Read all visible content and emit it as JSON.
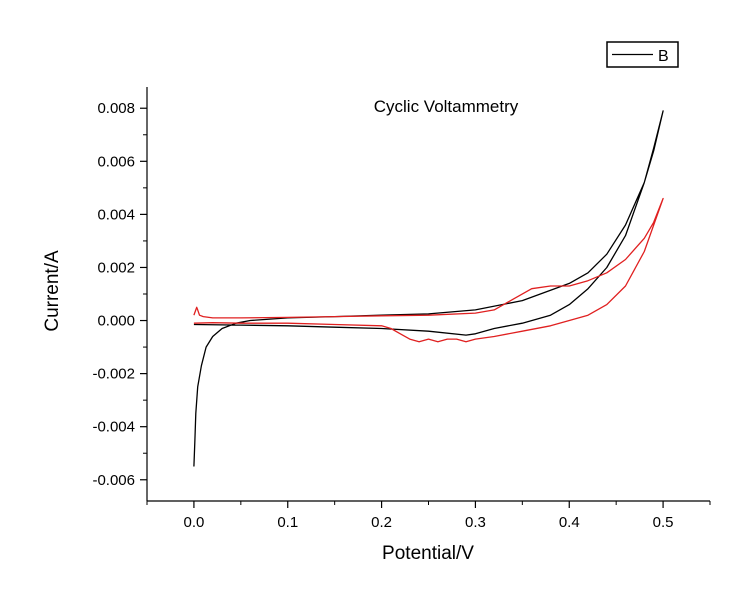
{
  "chart_data": {
    "type": "line",
    "title": "Cyclic Voltammetry",
    "xlabel": "Potential/V",
    "ylabel": "Current/A",
    "xlim": [
      -0.05,
      0.55
    ],
    "ylim": [
      -0.0068,
      0.0088
    ],
    "x_ticks": [
      0.0,
      0.1,
      0.2,
      0.3,
      0.4,
      0.5
    ],
    "x_tick_labels": [
      "0.0",
      "0.1",
      "0.2",
      "0.3",
      "0.4",
      "0.5"
    ],
    "y_ticks": [
      -0.006,
      -0.004,
      -0.002,
      0.0,
      0.002,
      0.004,
      0.006,
      0.008
    ],
    "y_tick_labels": [
      "-0.006",
      "-0.004",
      "-0.002",
      "0.000",
      "0.002",
      "0.004",
      "0.006",
      "0.008"
    ],
    "grid": false,
    "legend": {
      "position": "top-right",
      "entries": [
        {
          "label": "B",
          "color": "#000000"
        }
      ]
    },
    "series": [
      {
        "name": "B",
        "color": "#000000",
        "x": [
          0.0,
          0.001,
          0.002,
          0.004,
          0.008,
          0.013,
          0.02,
          0.03,
          0.045,
          0.06,
          0.1,
          0.15,
          0.2,
          0.25,
          0.3,
          0.35,
          0.4,
          0.42,
          0.44,
          0.46,
          0.48,
          0.49,
          0.5,
          0.49,
          0.48,
          0.46,
          0.44,
          0.42,
          0.4,
          0.38,
          0.35,
          0.32,
          0.3,
          0.29,
          0.25,
          0.2,
          0.15,
          0.1,
          0.05,
          0.0
        ],
        "y": [
          -0.0055,
          -0.0045,
          -0.0035,
          -0.0025,
          -0.0017,
          -0.001,
          -0.0006,
          -0.0003,
          -0.0001,
          0.0,
          0.0001,
          0.00015,
          0.0002,
          0.00025,
          0.0004,
          0.00075,
          0.0014,
          0.0018,
          0.0025,
          0.0036,
          0.0052,
          0.0064,
          0.0079,
          0.0065,
          0.0052,
          0.0032,
          0.002,
          0.0012,
          0.0006,
          0.0002,
          -0.0001,
          -0.0003,
          -0.0005,
          -0.00055,
          -0.0004,
          -0.0003,
          -0.00025,
          -0.0002,
          -0.00017,
          -0.00015
        ]
      },
      {
        "name": "",
        "color": "#e02020",
        "x": [
          0.0,
          0.002,
          0.003,
          0.004,
          0.006,
          0.01,
          0.02,
          0.05,
          0.1,
          0.15,
          0.2,
          0.25,
          0.3,
          0.32,
          0.34,
          0.36,
          0.38,
          0.4,
          0.42,
          0.44,
          0.46,
          0.48,
          0.49,
          0.5,
          0.49,
          0.48,
          0.46,
          0.44,
          0.42,
          0.4,
          0.38,
          0.35,
          0.32,
          0.3,
          0.29,
          0.28,
          0.27,
          0.26,
          0.25,
          0.24,
          0.23,
          0.22,
          0.21,
          0.2,
          0.15,
          0.1,
          0.05,
          0.02,
          0.0
        ],
        "y": [
          0.0002,
          0.0004,
          0.0005,
          0.0004,
          0.0002,
          0.00015,
          0.0001,
          0.0001,
          0.00012,
          0.00015,
          0.00018,
          0.0002,
          0.00028,
          0.0004,
          0.0008,
          0.0012,
          0.0013,
          0.0013,
          0.0015,
          0.0018,
          0.0023,
          0.0031,
          0.0037,
          0.0046,
          0.0036,
          0.0026,
          0.0013,
          0.0006,
          0.0002,
          0.0,
          -0.0002,
          -0.0004,
          -0.0006,
          -0.0007,
          -0.0008,
          -0.0007,
          -0.0007,
          -0.0008,
          -0.0007,
          -0.0008,
          -0.0007,
          -0.0005,
          -0.0003,
          -0.0002,
          -0.00015,
          -0.0001,
          -0.0001,
          -8e-05,
          -0.0001
        ]
      }
    ]
  }
}
